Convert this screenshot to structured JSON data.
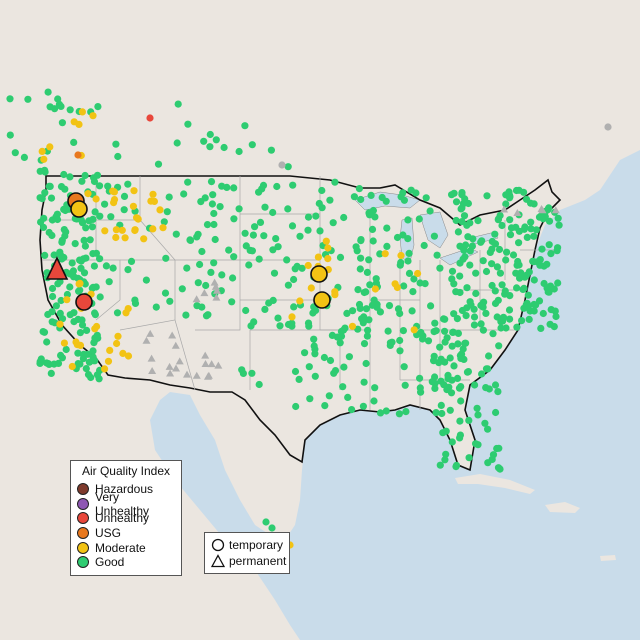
{
  "legend": {
    "title": "Air Quality Index",
    "items": [
      {
        "label": "Hazardous",
        "color": "#7e3a2c"
      },
      {
        "label": "Very Unhealthy",
        "color": "#8e57b3"
      },
      {
        "label": "Unhealthy",
        "color": "#e8473b"
      },
      {
        "label": "USG",
        "color": "#e8781e"
      },
      {
        "label": "Moderate",
        "color": "#f2c314"
      },
      {
        "label": "Good",
        "color": "#2ecc71"
      }
    ]
  },
  "monitor_types": {
    "items": [
      {
        "label": "temporary",
        "shape": "circle"
      },
      {
        "label": "permanent",
        "shape": "triangle"
      }
    ]
  },
  "map_colors": {
    "ocean": "#c9dcea",
    "land": "#ebe6e0",
    "state_border": "#a8a8a8",
    "country_border": "#111111",
    "no_data": "#b0b0b0"
  },
  "icons": {
    "temporary": "circle-icon",
    "permanent": "triangle-icon"
  }
}
